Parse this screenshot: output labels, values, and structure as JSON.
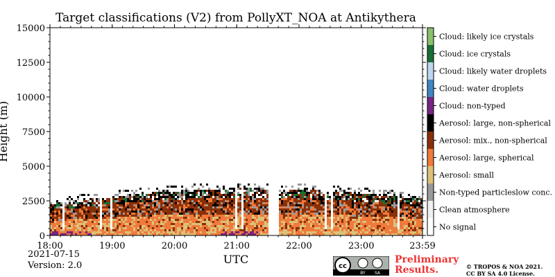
{
  "chart_data": {
    "type": "heatmap",
    "title": "Target classifications (V2) from PollyXT_NOA at Antikythera",
    "xlabel": "UTC",
    "ylabel": "Height (m)",
    "x_ticks": [
      "18:00",
      "19:00",
      "20:00",
      "21:00",
      "22:00",
      "23:00",
      "23:59"
    ],
    "x_range": [
      "18:00",
      "23:59"
    ],
    "y_ticks": [
      0,
      2500,
      5000,
      7500,
      10000,
      12500,
      15000
    ],
    "ylim": [
      0,
      15000
    ],
    "legend_position": "right",
    "colorbar_classes": [
      {
        "label": "Cloud: likely ice crystals",
        "color": "#8cbf6e"
      },
      {
        "label": "Cloud: ice crystals",
        "color": "#1a6e34"
      },
      {
        "label": "Cloud: likely water droplets",
        "color": "#bcd6ef"
      },
      {
        "label": "Cloud: water droplets",
        "color": "#3f86c4"
      },
      {
        "label": "Cloud: non-typed",
        "color": "#772484"
      },
      {
        "label": "Aerosol: large, non-spherical",
        "color": "#000000"
      },
      {
        "label": "Aerosol: mix., non-spherical",
        "color": "#8a3008"
      },
      {
        "label": "Aerosol: large, spherical",
        "color": "#ef7a3c"
      },
      {
        "label": "Aerosol: small",
        "color": "#dcc178"
      },
      {
        "label": "Non-typed particleslow conc.",
        "color": "#999999"
      },
      {
        "label": "Clean atmosphere",
        "color": "#f0f0f0"
      },
      {
        "label": "No signal",
        "color": "#ffffff"
      }
    ],
    "series_summary": {
      "aerosol_layer_top_m": 3000,
      "cloud_non_typed_near_ground_hours": [
        "18:00-18:40",
        "20:40-21:20"
      ],
      "no_signal_gap": "21:30-21:40"
    }
  },
  "meta": {
    "date": "2021-07-15",
    "version": "Version: 2.0"
  },
  "footer": {
    "preliminary_line1": "Preliminary",
    "preliminary_line2": "Results.",
    "copyright_line1": "© TROPOS & NOA 2021.",
    "copyright_line2": "CC BY SA 4.0 License.",
    "cc_badge_labels": [
      "cc",
      "BY",
      "SA"
    ]
  }
}
